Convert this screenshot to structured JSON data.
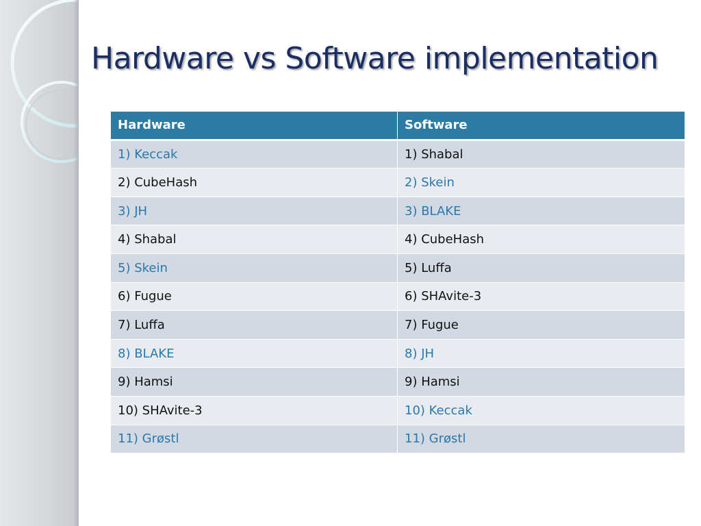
{
  "slide": {
    "title": "Hardware vs Software implementation"
  },
  "colors": {
    "title": "#1a2e63",
    "header_bg": "#2c7ba3",
    "row_odd": "#d2d9e2",
    "row_even": "#e8ebf0",
    "highlight_text": "#2a78ac",
    "normal_text": "#111111"
  },
  "table": {
    "headers": [
      "Hardware",
      "Software"
    ],
    "rows": [
      {
        "hardware": "1) Keccak",
        "software": "1) Shabal",
        "hw_highlight": true,
        "sw_highlight": false
      },
      {
        "hardware": "2) CubeHash",
        "software": "2) Skein",
        "hw_highlight": false,
        "sw_highlight": true
      },
      {
        "hardware": "3) JH",
        "software": "3) BLAKE",
        "hw_highlight": true,
        "sw_highlight": true
      },
      {
        "hardware": "4) Shabal",
        "software": "4) CubeHash",
        "hw_highlight": false,
        "sw_highlight": false
      },
      {
        "hardware": "5) Skein",
        "software": "5) Luffa",
        "hw_highlight": true,
        "sw_highlight": false
      },
      {
        "hardware": "6) Fugue",
        "software": "6) SHAvite-3",
        "hw_highlight": false,
        "sw_highlight": false
      },
      {
        "hardware": "7) Luffa",
        "software": "7) Fugue",
        "hw_highlight": false,
        "sw_highlight": false
      },
      {
        "hardware": "8) BLAKE",
        "software": "8) JH",
        "hw_highlight": true,
        "sw_highlight": true
      },
      {
        "hardware": "9) Hamsi",
        "software": "9) Hamsi",
        "hw_highlight": false,
        "sw_highlight": false
      },
      {
        "hardware": "10) SHAvite-3",
        "software": "10) Keccak",
        "hw_highlight": false,
        "sw_highlight": true
      },
      {
        "hardware": "11) Grøstl",
        "software": "11) Grøstl",
        "hw_highlight": true,
        "sw_highlight": true
      }
    ]
  }
}
